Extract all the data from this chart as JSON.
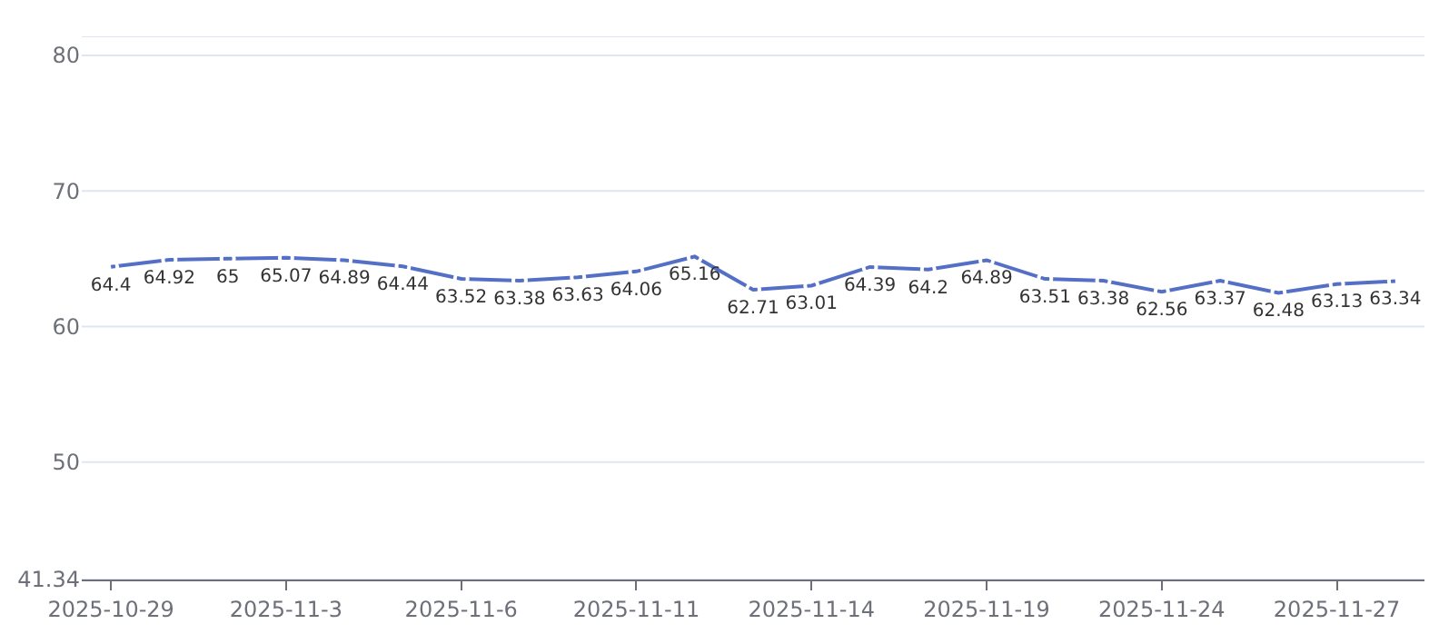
{
  "chart_data": {
    "type": "line",
    "categories": [
      "2025-10-29",
      null,
      null,
      "2025-11-3",
      null,
      null,
      "2025-11-6",
      null,
      null,
      "2025-11-11",
      null,
      null,
      "2025-11-14",
      null,
      null,
      "2025-11-19",
      null,
      null,
      "2025-11-24",
      null,
      null,
      "2025-11-27",
      null
    ],
    "series": [
      {
        "color": "#5470c6",
        "values": [
          64.4,
          64.92,
          65,
          65.07,
          64.89,
          64.44,
          63.52,
          63.38,
          63.63,
          64.06,
          65.16,
          62.71,
          63.01,
          64.39,
          64.2,
          64.89,
          63.51,
          63.38,
          62.56,
          63.37,
          62.48,
          63.13,
          63.34
        ]
      }
    ],
    "ylim": [
      41.34,
      81.4
    ],
    "yticks": [
      41.34,
      50,
      60,
      70,
      80,
      {
        "value": 81.4,
        "label": null
      }
    ],
    "grid": "y",
    "legend": false,
    "marker": "circle",
    "line_style": "solid",
    "data_labels": true
  }
}
